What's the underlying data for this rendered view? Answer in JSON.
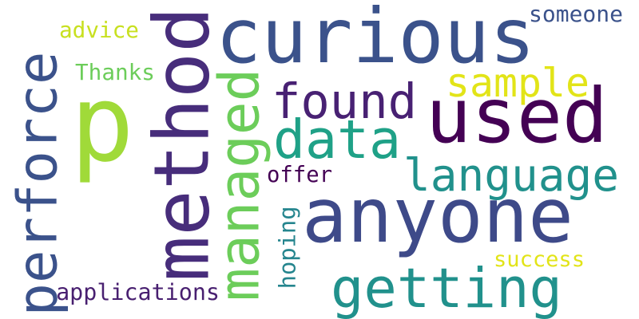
{
  "background_color": "#ffffff",
  "words": [
    {
      "text": "p",
      "color": "#a0da39",
      "orientation": "horizontal"
    },
    {
      "text": "curious",
      "color": "#3b528b",
      "orientation": "horizontal"
    },
    {
      "text": "used",
      "color": "#440154",
      "orientation": "horizontal"
    },
    {
      "text": "anyone",
      "color": "#3e4a89",
      "orientation": "horizontal"
    },
    {
      "text": "method",
      "color": "#472d7b",
      "orientation": "vertical"
    },
    {
      "text": "perforce",
      "color": "#3b528b",
      "orientation": "vertical"
    },
    {
      "text": "getting",
      "color": "#21918c",
      "orientation": "horizontal"
    },
    {
      "text": "language",
      "color": "#21918c",
      "orientation": "horizontal"
    },
    {
      "text": "data",
      "color": "#1fa187",
      "orientation": "horizontal"
    },
    {
      "text": "managed",
      "color": "#6ccd5a",
      "orientation": "vertical"
    },
    {
      "text": "found",
      "color": "#482173",
      "orientation": "horizontal"
    },
    {
      "text": "sample",
      "color": "#e2e418",
      "orientation": "horizontal"
    },
    {
      "text": "applications",
      "color": "#481f70",
      "orientation": "horizontal"
    },
    {
      "text": "Thanks",
      "color": "#6ccd5a",
      "orientation": "horizontal"
    },
    {
      "text": "advice",
      "color": "#c8e020",
      "orientation": "horizontal"
    },
    {
      "text": "someone",
      "color": "#3b528b",
      "orientation": "horizontal"
    },
    {
      "text": "offer",
      "color": "#440154",
      "orientation": "horizontal"
    },
    {
      "text": "hoping",
      "color": "#25858e",
      "orientation": "vertical"
    },
    {
      "text": "success",
      "color": "#e2e418",
      "orientation": "horizontal"
    }
  ]
}
